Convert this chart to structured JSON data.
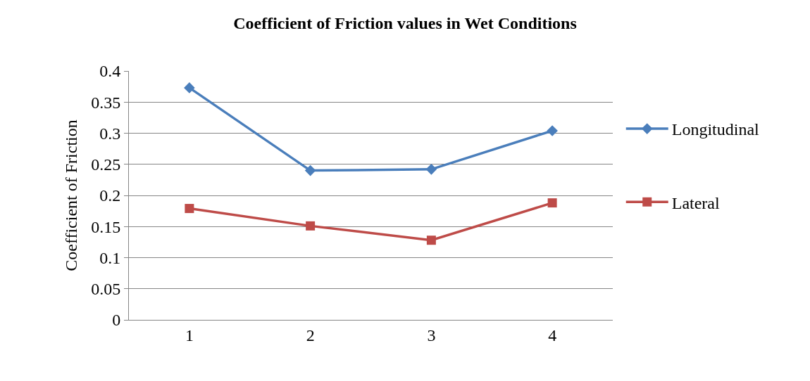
{
  "chart_data": {
    "type": "line",
    "title": "Coefficient of Friction values in Wet Conditions",
    "ylabel": "Coefficient of Friction",
    "categories": [
      "1",
      "2",
      "3",
      "4"
    ],
    "series": [
      {
        "name": "Longitudinal",
        "color": "#4a7ebb",
        "marker": "diamond",
        "values": [
          0.373,
          0.24,
          0.242,
          0.304
        ]
      },
      {
        "name": "Lateral",
        "color": "#be4b48",
        "marker": "square",
        "values": [
          0.179,
          0.151,
          0.128,
          0.188
        ]
      }
    ],
    "ylim": [
      0,
      0.4
    ],
    "yticks": [
      0,
      0.05,
      0.1,
      0.15,
      0.2,
      0.25,
      0.3,
      0.35,
      0.4
    ],
    "grid": "y",
    "legend": "right"
  }
}
